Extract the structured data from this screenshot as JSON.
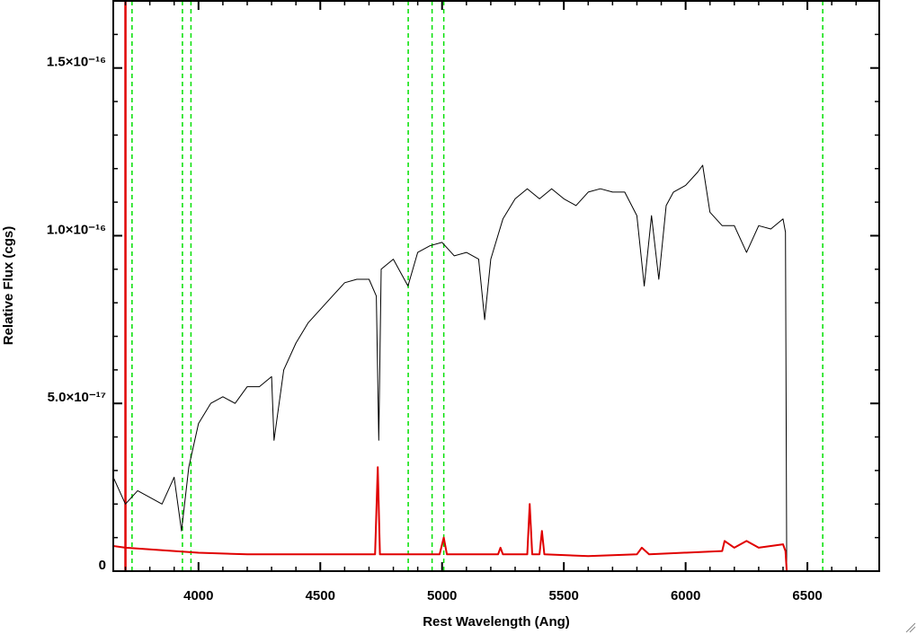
{
  "chart_data": {
    "type": "line",
    "xlabel": "Rest Wavelength (Ang)",
    "ylabel": "Relative Flux (cgs)",
    "xlim": [
      3650,
      6795
    ],
    "ylim": [
      0,
      1.7e-16
    ],
    "xticks": [
      4000,
      4500,
      5000,
      5500,
      6000,
      6500
    ],
    "yticks": [
      0,
      {
        "value": 5e-17,
        "label": "5.0×10⁻¹⁷"
      },
      {
        "value": 1e-16,
        "label": "1.0×10⁻¹⁶"
      },
      {
        "value": 1.5e-16,
        "label": "1.5×10⁻¹⁶"
      }
    ],
    "xminor": [
      3700,
      3800,
      3900,
      4100,
      4200,
      4300,
      4400,
      4600,
      4700,
      4800,
      4900,
      5100,
      5200,
      5300,
      5400,
      5600,
      5700,
      5800,
      5900,
      6100,
      6200,
      6300,
      6400,
      6600,
      6700
    ],
    "yminor": [
      1e-17,
      2e-17,
      3e-17,
      4e-17,
      6e-17,
      7e-17,
      8e-17,
      9e-17,
      1.1e-16,
      1.2e-16,
      1.3e-16,
      1.4e-16,
      1.6e-16
    ],
    "series": [
      {
        "color": "#000000",
        "x": [
          3650,
          3700,
          3750,
          3800,
          3850,
          3900,
          3930,
          3960,
          4000,
          4050,
          4100,
          4150,
          4200,
          4250,
          4300,
          4310,
          4350,
          4400,
          4450,
          4500,
          4550,
          4600,
          4650,
          4700,
          4730,
          4740,
          4750,
          4800,
          4860,
          4900,
          4950,
          5000,
          5050,
          5100,
          5150,
          5175,
          5200,
          5250,
          5300,
          5350,
          5400,
          5450,
          5500,
          5550,
          5600,
          5650,
          5700,
          5750,
          5800,
          5830,
          5860,
          5890,
          5920,
          5950,
          6000,
          6050,
          6070,
          6100,
          6150,
          6200,
          6250,
          6300,
          6350,
          6400,
          6410,
          6415,
          6795
        ],
        "values": [
          2.8e-17,
          2e-17,
          2.4e-17,
          2.2e-17,
          2e-17,
          2.8e-17,
          1.2e-17,
          3.1e-17,
          4.4e-17,
          5e-17,
          5.2e-17,
          5e-17,
          5.5e-17,
          5.5e-17,
          5.8e-17,
          3.9e-17,
          6e-17,
          6.8e-17,
          7.4e-17,
          7.8e-17,
          8.2e-17,
          8.6e-17,
          8.7e-17,
          8.7e-17,
          8.2e-17,
          3.9e-17,
          9e-17,
          9.3e-17,
          8.5e-17,
          9.5e-17,
          9.7e-17,
          9.8e-17,
          9.4e-17,
          9.5e-17,
          9.3e-17,
          7.5e-17,
          9.3e-17,
          1.05e-16,
          1.11e-16,
          1.14e-16,
          1.11e-16,
          1.14e-16,
          1.11e-16,
          1.09e-16,
          1.13e-16,
          1.14e-16,
          1.13e-16,
          1.13e-16,
          1.06e-16,
          8.5e-17,
          1.06e-16,
          8.7e-17,
          1.09e-16,
          1.13e-16,
          1.15e-16,
          1.19e-16,
          1.21e-16,
          1.07e-16,
          1.03e-16,
          1.03e-16,
          9.5e-17,
          1.03e-16,
          1.02e-16,
          1.05e-16,
          1.01e-16,
          0,
          0
        ]
      },
      {
        "color": "#e00000",
        "x": [
          3650,
          3700,
          3800,
          3900,
          4000,
          4200,
          4400,
          4700,
          4725,
          4736,
          4745,
          4990,
          5007,
          5020,
          5230,
          5240,
          5250,
          5350,
          5360,
          5370,
          5400,
          5410,
          5420,
          5600,
          5800,
          5820,
          5850,
          6150,
          6160,
          6200,
          6250,
          6300,
          6400,
          6410,
          6415,
          6795
        ],
        "values": [
          7.5e-18,
          7e-18,
          6.5e-18,
          6e-18,
          5.5e-18,
          5e-18,
          5e-18,
          5e-18,
          5e-18,
          3.1e-17,
          5e-18,
          5e-18,
          1e-17,
          5e-18,
          5e-18,
          7e-18,
          5e-18,
          5e-18,
          2e-17,
          5e-18,
          5e-18,
          1.2e-17,
          5e-18,
          4.5e-18,
          5e-18,
          7e-18,
          5e-18,
          6e-18,
          9e-18,
          7e-18,
          9e-18,
          7e-18,
          8e-18,
          6e-18,
          0,
          0
        ]
      }
    ],
    "vlines": [
      {
        "x": 3700,
        "color": "#e00000",
        "style": "solid"
      },
      {
        "x": 3727,
        "color": "#00e000",
        "style": "dashed"
      },
      {
        "x": 3934,
        "color": "#00e000",
        "style": "dashed"
      },
      {
        "x": 3969,
        "color": "#00e000",
        "style": "dashed"
      },
      {
        "x": 4861,
        "color": "#00e000",
        "style": "dashed"
      },
      {
        "x": 4959,
        "color": "#00e000",
        "style": "dashed"
      },
      {
        "x": 5007,
        "color": "#00e000",
        "style": "dashed"
      },
      {
        "x": 6563,
        "color": "#00e000",
        "style": "dashed"
      }
    ]
  }
}
